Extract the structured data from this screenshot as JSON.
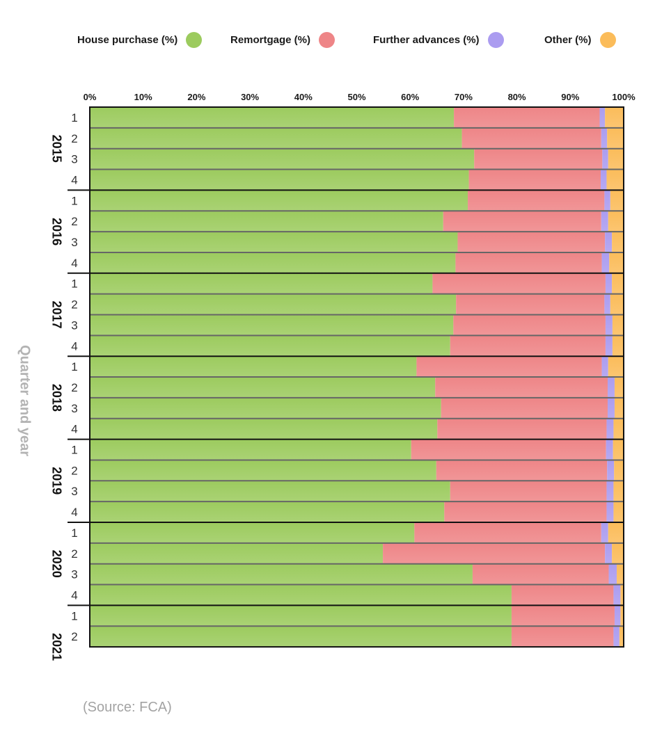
{
  "legend": [
    {
      "label": "House purchase (%)",
      "color": "#9ccb5e"
    },
    {
      "label": "Remortgage (%)",
      "color": "#ee8587"
    },
    {
      "label": "Further advances (%)",
      "color": "#ab9cf0"
    },
    {
      "label": "Other (%)",
      "color": "#fbbc5a"
    }
  ],
  "source": "(Source: FCA)",
  "chart_data": {
    "type": "bar",
    "orientation": "horizontal",
    "stacked": true,
    "xlabel": "",
    "ylabel": "Quarter and year",
    "xlim": [
      0,
      100
    ],
    "x_ticks": [
      "0%",
      "10%",
      "20%",
      "30%",
      "40%",
      "50%",
      "60%",
      "70%",
      "80%",
      "90%",
      "100%"
    ],
    "x_axis_position": "top",
    "legend_position": "top",
    "grid": false,
    "years": [
      {
        "label": "2015",
        "quarters": [
          "1",
          "2",
          "3",
          "4"
        ]
      },
      {
        "label": "2016",
        "quarters": [
          "1",
          "2",
          "3",
          "4"
        ]
      },
      {
        "label": "2017",
        "quarters": [
          "1",
          "2",
          "3",
          "4"
        ]
      },
      {
        "label": "2018",
        "quarters": [
          "1",
          "2",
          "3",
          "4"
        ]
      },
      {
        "label": "2019",
        "quarters": [
          "1",
          "2",
          "3",
          "4"
        ]
      },
      {
        "label": "2020",
        "quarters": [
          "1",
          "2",
          "3",
          "4"
        ]
      },
      {
        "label": "2021",
        "quarters": [
          "1",
          "2"
        ]
      }
    ],
    "series": [
      {
        "name": "House purchase (%)",
        "color": "#9ccb5e",
        "values": [
          68.2,
          69.7,
          72.0,
          71.0,
          70.8,
          66.2,
          68.9,
          68.5,
          64.2,
          68.6,
          68.1,
          67.5,
          61.2,
          64.7,
          65.8,
          65.1,
          60.2,
          64.9,
          67.5,
          66.4,
          60.8,
          54.9,
          71.7,
          79.0,
          79.0,
          79.0
        ]
      },
      {
        "name": "Remortgage (%)",
        "color": "#ee8587",
        "values": [
          27.3,
          26.1,
          24.0,
          24.7,
          25.6,
          29.6,
          27.6,
          27.4,
          32.4,
          27.8,
          28.5,
          29.1,
          34.7,
          32.3,
          31.2,
          31.7,
          36.5,
          32.0,
          29.3,
          30.4,
          35.0,
          41.6,
          25.5,
          19.1,
          19.3,
          19.1
        ]
      },
      {
        "name": "Further advances (%)",
        "color": "#ab9cf0",
        "values": [
          1.0,
          1.1,
          1.1,
          1.1,
          1.1,
          1.3,
          1.3,
          1.4,
          1.2,
          1.1,
          1.3,
          1.3,
          1.2,
          1.3,
          1.3,
          1.3,
          1.3,
          1.3,
          1.3,
          1.3,
          1.3,
          1.3,
          1.5,
          1.3,
          1.1,
          1.1
        ]
      },
      {
        "name": "Other (%)",
        "color": "#fbbc5a",
        "values": [
          3.5,
          3.1,
          2.9,
          3.2,
          2.5,
          2.9,
          2.2,
          2.7,
          2.2,
          2.5,
          2.1,
          2.1,
          2.9,
          1.7,
          1.7,
          1.9,
          2.0,
          1.8,
          1.9,
          1.9,
          2.9,
          2.2,
          1.3,
          0.6,
          0.6,
          0.8
        ]
      }
    ]
  }
}
